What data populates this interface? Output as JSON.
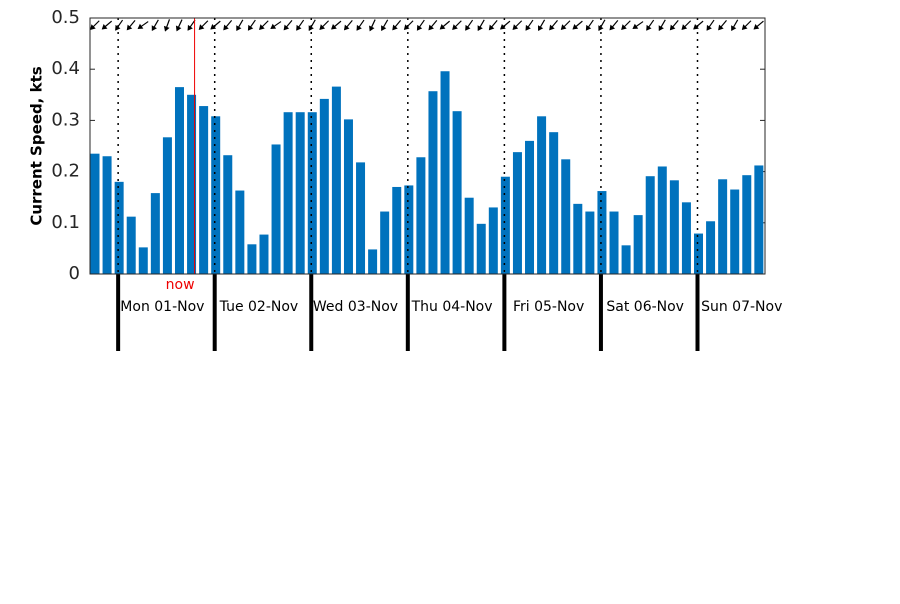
{
  "chart_data": {
    "type": "bar",
    "y_label": "Current Speed, kts",
    "color": "#0072bd",
    "values": [
      0.235,
      0.23,
      0.18,
      0.112,
      0.052,
      0.158,
      0.267,
      0.365,
      0.35,
      0.328,
      0.308,
      0.232,
      0.163,
      0.058,
      0.077,
      0.253,
      0.316,
      0.316,
      0.316,
      0.342,
      0.366,
      0.302,
      0.218,
      0.048,
      0.122,
      0.17,
      0.173,
      0.228,
      0.357,
      0.396,
      0.318,
      0.149,
      0.098,
      0.13,
      0.19,
      0.238,
      0.26,
      0.308,
      0.277,
      0.224,
      0.137,
      0.122,
      0.162,
      0.122,
      0.056,
      0.115,
      0.191,
      0.21,
      0.183,
      0.14,
      0.079,
      0.103,
      0.185,
      0.165,
      0.193,
      0.212
    ],
    "directions": [
      225,
      230,
      215,
      220,
      235,
      210,
      200,
      205,
      215,
      225,
      230,
      220,
      210,
      215,
      225,
      235,
      220,
      215,
      210,
      225,
      230,
      220,
      215,
      205,
      210,
      220,
      225,
      215,
      220,
      230,
      225,
      215,
      210,
      220,
      230,
      225,
      215,
      210,
      220,
      225,
      230,
      215,
      210,
      220,
      225,
      235,
      215,
      210,
      220,
      225,
      230,
      215,
      220,
      210,
      225,
      230
    ],
    "days": [
      "Mon 01-Nov",
      "Tue 02-Nov",
      "Wed 03-Nov",
      "Thu 04-Nov",
      "Fri 05-Nov",
      "Sat 06-Nov",
      "Sun 07-Nov"
    ],
    "day_starts": [
      2,
      10,
      18,
      26,
      34,
      42,
      50
    ],
    "now": {
      "label": "now",
      "x": 8.25
    },
    "ylim": [
      0,
      0.5
    ],
    "yticks": [
      0,
      0.1,
      0.2,
      0.3,
      0.4,
      0.5
    ]
  }
}
